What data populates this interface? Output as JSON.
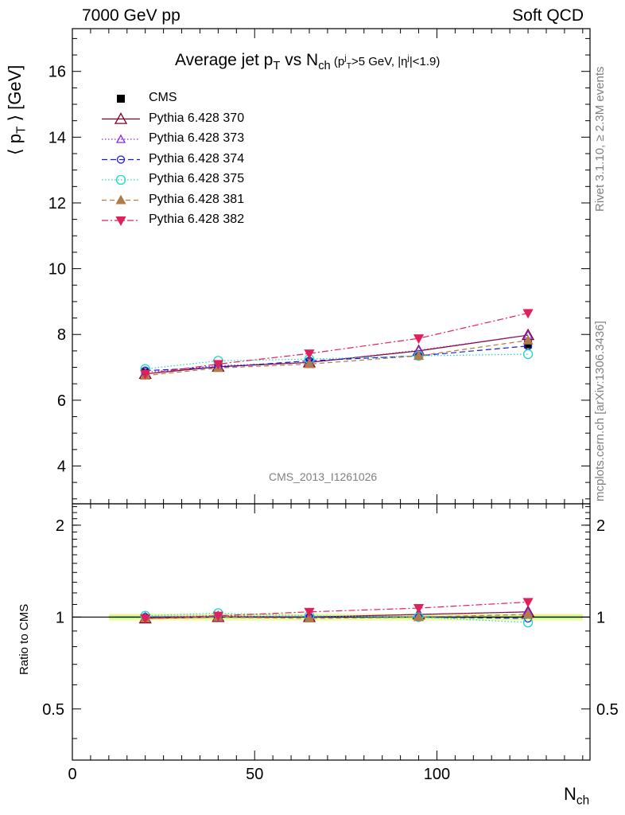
{
  "header": {
    "left": "7000 GeV pp",
    "right": "Soft QCD"
  },
  "side_labels": {
    "rivet": "Rivet 3.1.10, ≥ 2.3M events",
    "mcplots": "mcplots.cern.ch [arXiv:1306.3436]"
  },
  "analysis_id": "CMS_2013_I1261026",
  "colors": {
    "CMS": "#000000",
    "p370": "#800020",
    "p373": "#8a2be2",
    "p374": "#1a1ad6",
    "p375": "#1ad6c8",
    "p381": "#b07c48",
    "p382": "#e0205a",
    "band_outer": "#f2f79a",
    "band_inner": "#a8f08c"
  },
  "chart_data": [
    {
      "type": "line",
      "title_parts": {
        "pre": "Average jet p",
        "sub1": "T",
        "mid": " vs N",
        "sub2": "ch",
        "cut_open": " (p",
        "cut_sup": "j",
        "cut_sub": "T",
        "cut_mid": ">5 GeV, |η",
        "cut_sup2": "j",
        "cut_end": "|<1.9)"
      },
      "ylabel": "⟨ p",
      "ylabel_sub": "T",
      "ylabel_end": " ⟩ [GeV]",
      "xlabel": "N",
      "xlabel_sub": "ch",
      "xlim": [
        0,
        142
      ],
      "ylim": [
        2.85,
        17.3
      ],
      "yticks": [
        "4",
        "6",
        "8",
        "10",
        "12",
        "14",
        "16"
      ],
      "x": [
        20,
        40,
        65,
        95,
        125
      ],
      "series": [
        {
          "name": "CMS",
          "key": "CMS",
          "values": [
            6.85,
            7.0,
            7.15,
            7.35,
            7.7
          ]
        },
        {
          "name": "Pythia 6.428 370",
          "key": "p370",
          "values": [
            6.8,
            7.02,
            7.15,
            7.5,
            7.98
          ]
        },
        {
          "name": "Pythia 6.428 373",
          "key": "p373",
          "values": [
            6.85,
            7.05,
            7.15,
            7.52,
            7.98
          ]
        },
        {
          "name": "Pythia 6.428 374",
          "key": "p374",
          "values": [
            6.9,
            7.0,
            7.2,
            7.35,
            7.65
          ]
        },
        {
          "name": "Pythia 6.428 375",
          "key": "p375",
          "values": [
            6.95,
            7.2,
            7.25,
            7.35,
            7.4
          ]
        },
        {
          "name": "Pythia 6.428 381",
          "key": "p381",
          "values": [
            6.75,
            6.98,
            7.1,
            7.35,
            7.82
          ]
        },
        {
          "name": "Pythia 6.428 382",
          "key": "p382",
          "values": [
            6.8,
            7.1,
            7.42,
            7.88,
            8.65
          ]
        }
      ]
    },
    {
      "type": "line",
      "ylabel": "Ratio to CMS",
      "xlabel": "N",
      "xlabel_sub": "ch",
      "xlim": [
        0,
        142
      ],
      "ylim": [
        0.34,
        2.35
      ],
      "yticks": [
        "0.5",
        "1",
        "2"
      ],
      "xticks": [
        "0",
        "50",
        "100"
      ],
      "x": [
        20,
        40,
        65,
        95,
        125
      ],
      "series": [
        {
          "name": "Pythia 6.428 370",
          "key": "p370",
          "values": [
            0.99,
            1.0,
            1.0,
            1.02,
            1.04
          ]
        },
        {
          "name": "Pythia 6.428 373",
          "key": "p373",
          "values": [
            1.0,
            1.01,
            1.0,
            1.02,
            1.04
          ]
        },
        {
          "name": "Pythia 6.428 374",
          "key": "p374",
          "values": [
            1.0,
            1.0,
            1.0,
            1.0,
            0.99
          ]
        },
        {
          "name": "Pythia 6.428 375",
          "key": "p375",
          "values": [
            1.01,
            1.03,
            1.01,
            1.0,
            0.96
          ]
        },
        {
          "name": "Pythia 6.428 381",
          "key": "p381",
          "values": [
            0.99,
            1.0,
            0.99,
            1.0,
            1.02
          ]
        },
        {
          "name": "Pythia 6.428 382",
          "key": "p382",
          "values": [
            0.99,
            1.01,
            1.04,
            1.07,
            1.12
          ]
        }
      ]
    }
  ]
}
